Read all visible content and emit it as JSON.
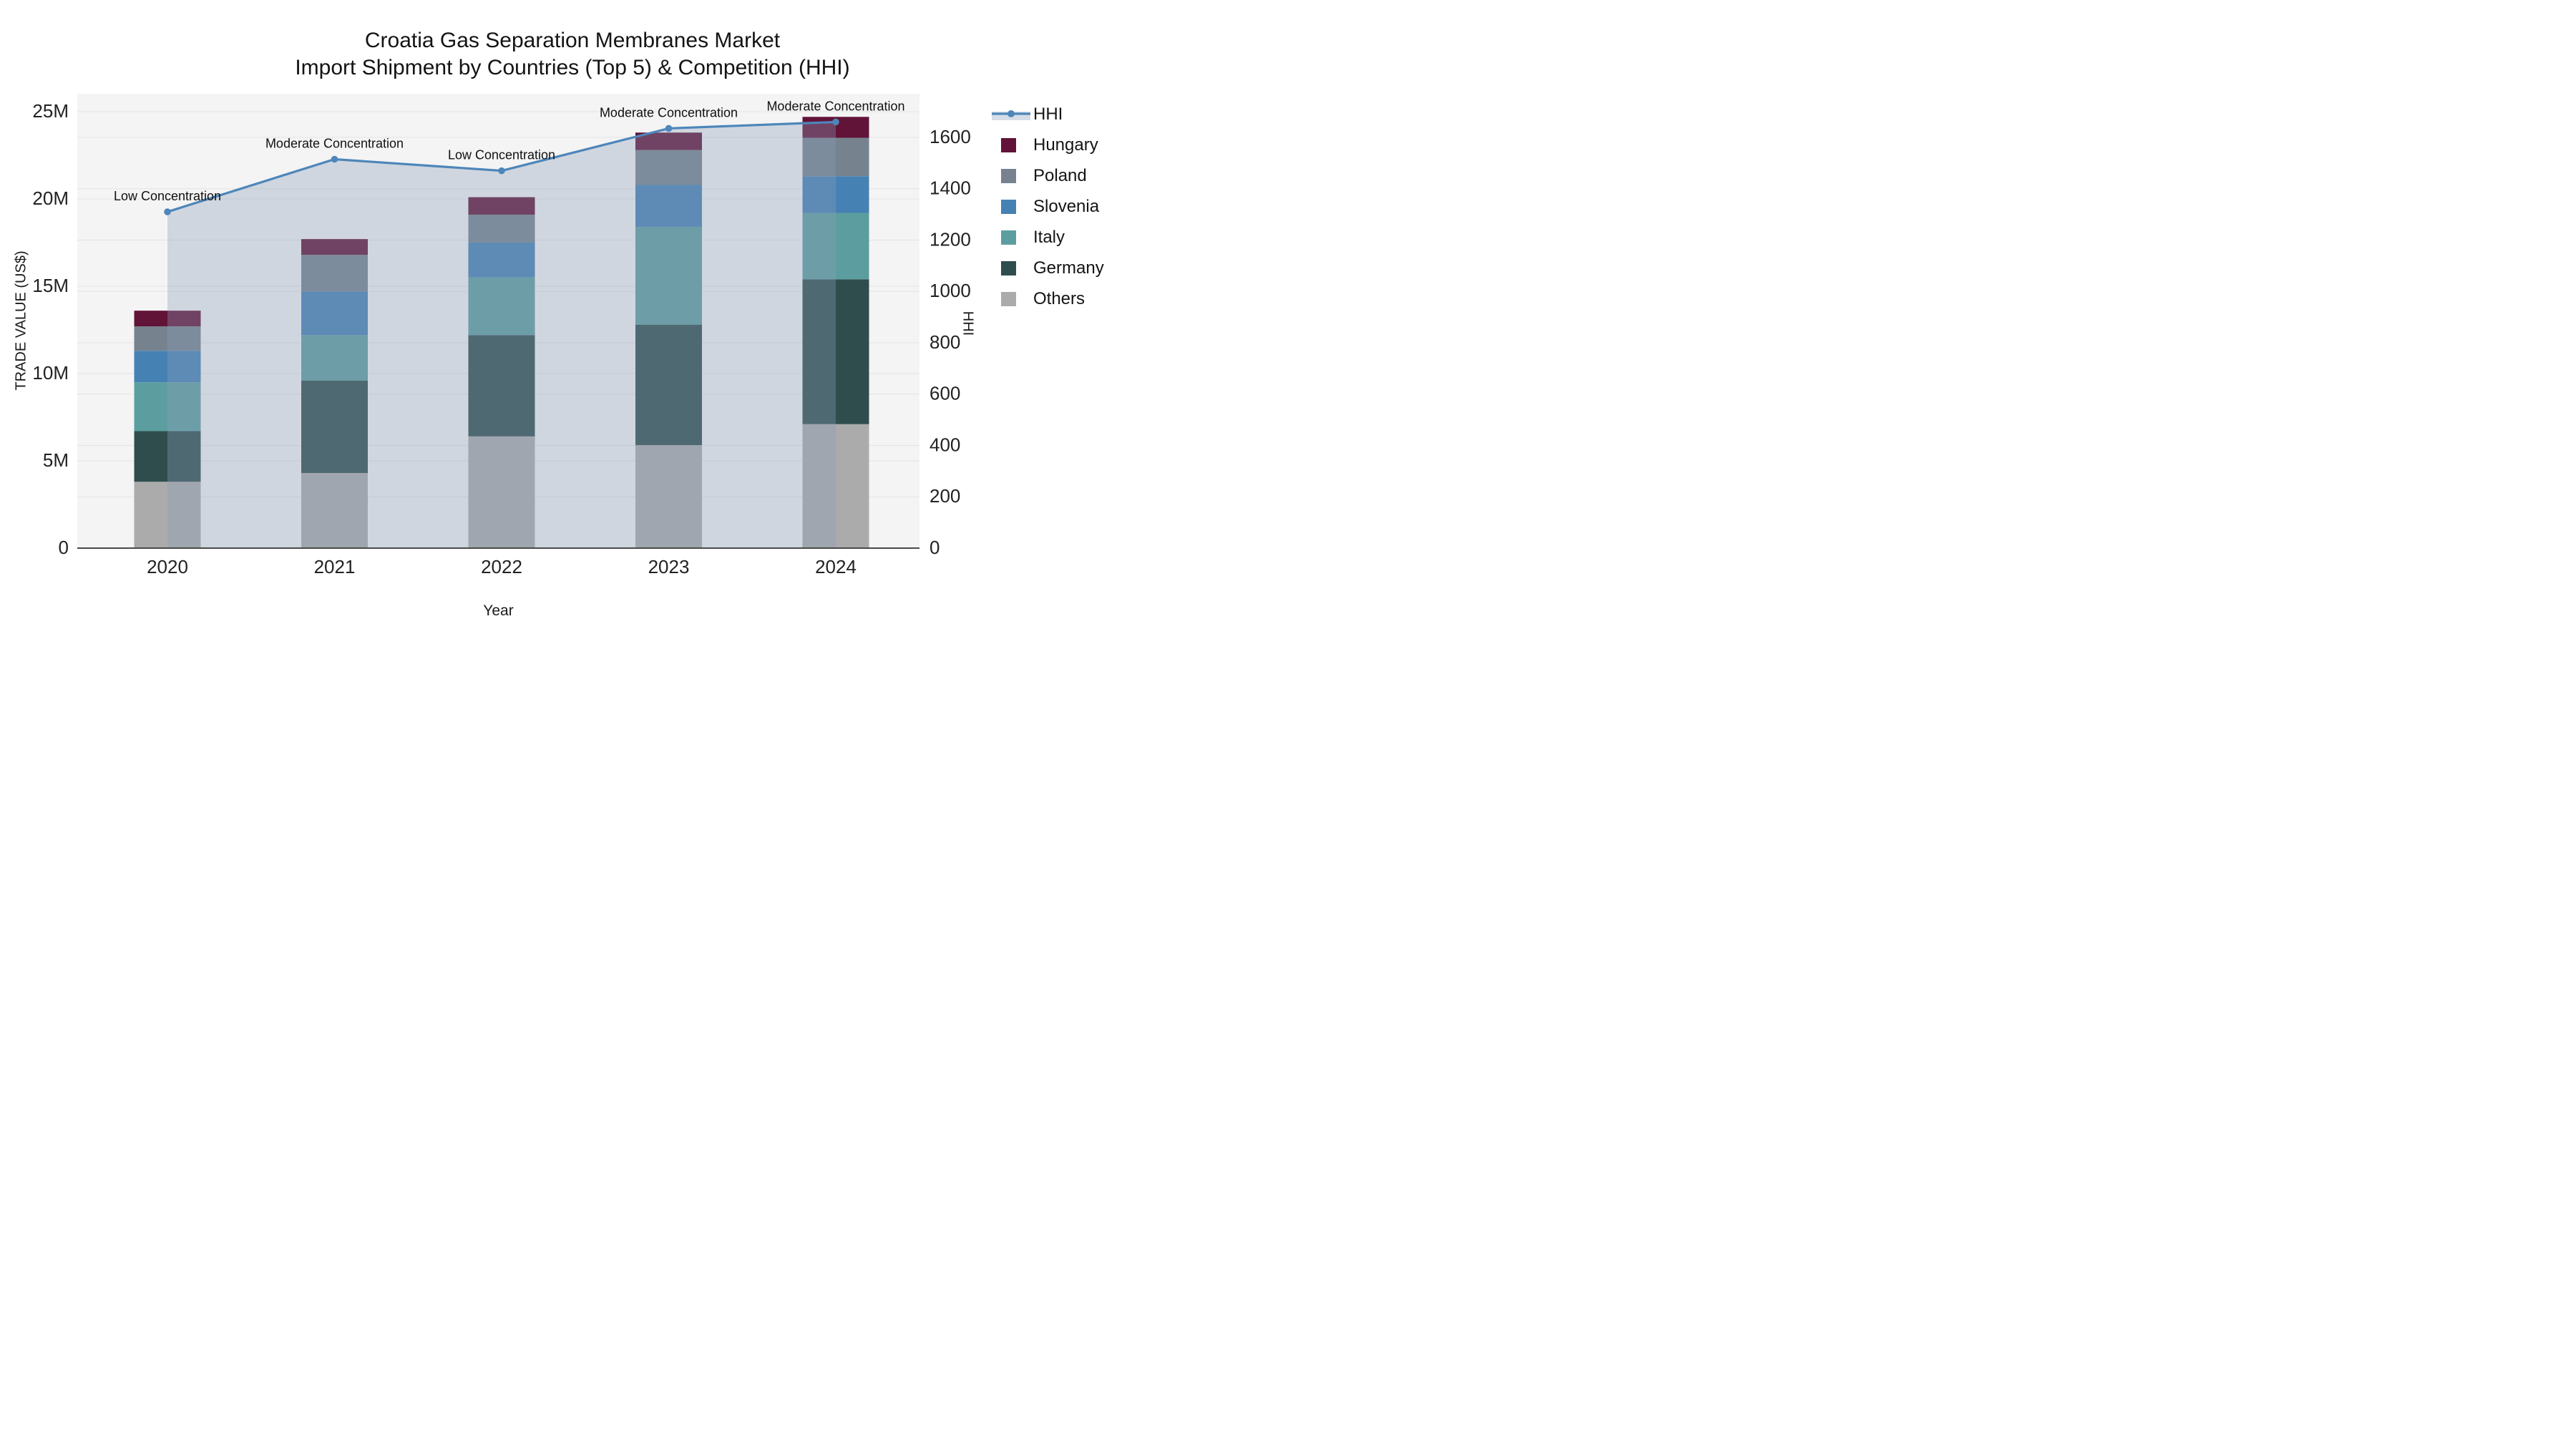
{
  "title": {
    "line1": "Croatia Gas Separation Membranes Market",
    "line2": "Import Shipment by Countries (Top 5) & Competition (HHI)"
  },
  "axes": {
    "x_title": "Year",
    "y_left_title": "TRADE VALUE (US$)",
    "y_right_title": "HHI",
    "y_left_tick_labels": [
      "0",
      "5M",
      "10M",
      "15M",
      "20M",
      "25M"
    ],
    "y_right_tick_labels": [
      "0",
      "200",
      "400",
      "600",
      "800",
      "1000",
      "1200",
      "1400",
      "1600"
    ]
  },
  "chart_data": {
    "type": "bar+line",
    "subtype": "stacked-bar with secondary-axis line and area fill",
    "categories": [
      "2020",
      "2021",
      "2022",
      "2023",
      "2024"
    ],
    "bar_value_unit": "US$ millions (left axis)",
    "stack_order_bottom_to_top": [
      "Others",
      "Germany",
      "Italy",
      "Slovenia",
      "Poland",
      "Hungary"
    ],
    "series": [
      {
        "name": "Others",
        "color": "#ABABAB",
        "values": [
          3.8,
          4.3,
          6.4,
          5.9,
          7.1
        ]
      },
      {
        "name": "Germany",
        "color": "#2F4D4D",
        "values": [
          2.9,
          5.3,
          5.8,
          6.9,
          8.3
        ]
      },
      {
        "name": "Italy",
        "color": "#5C9EA0",
        "values": [
          2.8,
          2.6,
          3.3,
          5.6,
          3.8
        ]
      },
      {
        "name": "Slovenia",
        "color": "#4681B4",
        "values": [
          1.8,
          2.5,
          2.0,
          2.4,
          2.1
        ]
      },
      {
        "name": "Poland",
        "color": "#76838F",
        "values": [
          1.4,
          2.1,
          1.6,
          2.0,
          2.2
        ]
      },
      {
        "name": "Hungary",
        "color": "#621338",
        "values": [
          0.9,
          0.9,
          1.0,
          1.0,
          1.2
        ]
      }
    ],
    "bar_totals": [
      13.6,
      17.7,
      20.1,
      23.8,
      24.7
    ],
    "line": {
      "name": "HHI",
      "axis": "right",
      "color": "#4D86BA",
      "area_fill": "rgba(140,158,184,0.35)",
      "values": [
        1310,
        1515,
        1470,
        1635,
        1660
      ]
    },
    "annotations": [
      {
        "x": "2020",
        "text": "Low Concentration"
      },
      {
        "x": "2021",
        "text": "Moderate Concentration"
      },
      {
        "x": "2022",
        "text": "Low Concentration"
      },
      {
        "x": "2023",
        "text": "Moderate Concentration"
      },
      {
        "x": "2024",
        "text": "Moderate Concentration"
      }
    ],
    "title": "Croatia Gas Separation Membranes Market Import Shipment by Countries (Top 5) & Competition (HHI)",
    "xlabel": "Year",
    "ylabel_left": "TRADE VALUE (US$)",
    "ylabel_right": "HHI",
    "y_left_range": [
      0,
      26000000
    ],
    "y_left_ticks": [
      0,
      5000000,
      10000000,
      15000000,
      20000000,
      25000000
    ],
    "y_right_range": [
      0,
      1770
    ],
    "y_right_ticks": [
      0,
      200,
      400,
      600,
      800,
      1000,
      1200,
      1400,
      1600
    ],
    "grid": true,
    "legend_position": "right"
  },
  "legend": {
    "items": [
      {
        "label": "HHI",
        "kind": "line",
        "color": "#4D86BA"
      },
      {
        "label": "Hungary",
        "kind": "square",
        "color": "#621338"
      },
      {
        "label": "Poland",
        "kind": "square",
        "color": "#76838F"
      },
      {
        "label": "Slovenia",
        "kind": "square",
        "color": "#4681B4"
      },
      {
        "label": "Italy",
        "kind": "square",
        "color": "#5C9EA0"
      },
      {
        "label": "Germany",
        "kind": "square",
        "color": "#2F4D4D"
      },
      {
        "label": "Others",
        "kind": "square",
        "color": "#ABABAB"
      }
    ]
  },
  "colors": {
    "plot_background": "#f4f4f4",
    "figure_background": "#ffffff",
    "gridline": "#e3e3e3",
    "baseline": "#4a4a4a",
    "text": "#141414"
  }
}
